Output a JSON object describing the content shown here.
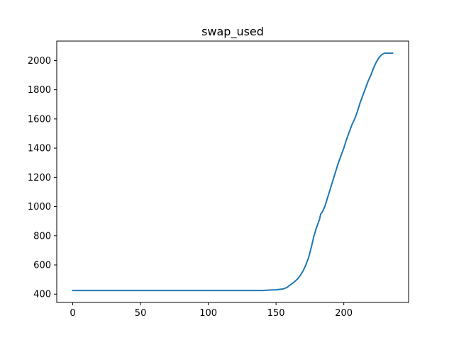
{
  "chart_data": {
    "type": "line",
    "title": "swap_used",
    "xlabel": "",
    "ylabel": "",
    "xlim": [
      -11.8,
      247.8
    ],
    "ylim": [
      343,
      2133
    ],
    "xticks": [
      0,
      50,
      100,
      150,
      200
    ],
    "yticks": [
      400,
      600,
      800,
      1000,
      1200,
      1400,
      1600,
      1800,
      2000
    ],
    "grid": false,
    "line_color": "#1f77b4",
    "series": [
      {
        "x": [
          0,
          20,
          40,
          60,
          80,
          100,
          120,
          140,
          145,
          150,
          155,
          158,
          160,
          163,
          166,
          168,
          170,
          172,
          174,
          176,
          178,
          180,
          182,
          183,
          184,
          186,
          188,
          190,
          192,
          194,
          196,
          198,
          200,
          202,
          204,
          206,
          208,
          210,
          212,
          214,
          216,
          218,
          220,
          222,
          224,
          226,
          228,
          230,
          232,
          234,
          236
        ],
        "y": [
          425,
          425,
          425,
          425,
          425,
          425,
          425,
          425,
          428,
          430,
          435,
          445,
          460,
          480,
          505,
          530,
          560,
          600,
          650,
          720,
          800,
          860,
          910,
          950,
          960,
          1000,
          1060,
          1120,
          1180,
          1240,
          1300,
          1350,
          1400,
          1460,
          1510,
          1560,
          1600,
          1650,
          1710,
          1760,
          1810,
          1860,
          1900,
          1950,
          1990,
          2020,
          2040,
          2050,
          2050,
          2050,
          2050
        ]
      }
    ]
  }
}
